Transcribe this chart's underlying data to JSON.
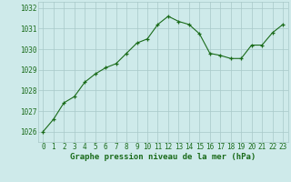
{
  "x": [
    0,
    1,
    2,
    3,
    4,
    5,
    6,
    7,
    8,
    9,
    10,
    11,
    12,
    13,
    14,
    15,
    16,
    17,
    18,
    19,
    20,
    21,
    22,
    23
  ],
  "y": [
    1026.0,
    1026.6,
    1027.4,
    1027.7,
    1028.4,
    1028.8,
    1029.1,
    1029.3,
    1029.8,
    1030.3,
    1030.5,
    1031.2,
    1031.6,
    1031.35,
    1031.2,
    1030.75,
    1029.8,
    1029.7,
    1029.55,
    1029.55,
    1030.2,
    1030.2,
    1030.8,
    1031.2
  ],
  "title": "Graphe pression niveau de la mer (hPa)",
  "xlim": [
    -0.5,
    23.5
  ],
  "ylim": [
    1025.5,
    1032.3
  ],
  "yticks": [
    1026,
    1027,
    1028,
    1029,
    1030,
    1031,
    1032
  ],
  "xticks": [
    0,
    1,
    2,
    3,
    4,
    5,
    6,
    7,
    8,
    9,
    10,
    11,
    12,
    13,
    14,
    15,
    16,
    17,
    18,
    19,
    20,
    21,
    22,
    23
  ],
  "line_color": "#1a6b1a",
  "marker_color": "#1a6b1a",
  "bg_color": "#ceeaea",
  "grid_color": "#a8c8c8",
  "title_color": "#1a6b1a",
  "title_fontsize": 6.5,
  "tick_fontsize": 5.5,
  "axis_label_color": "#1a6b1a"
}
